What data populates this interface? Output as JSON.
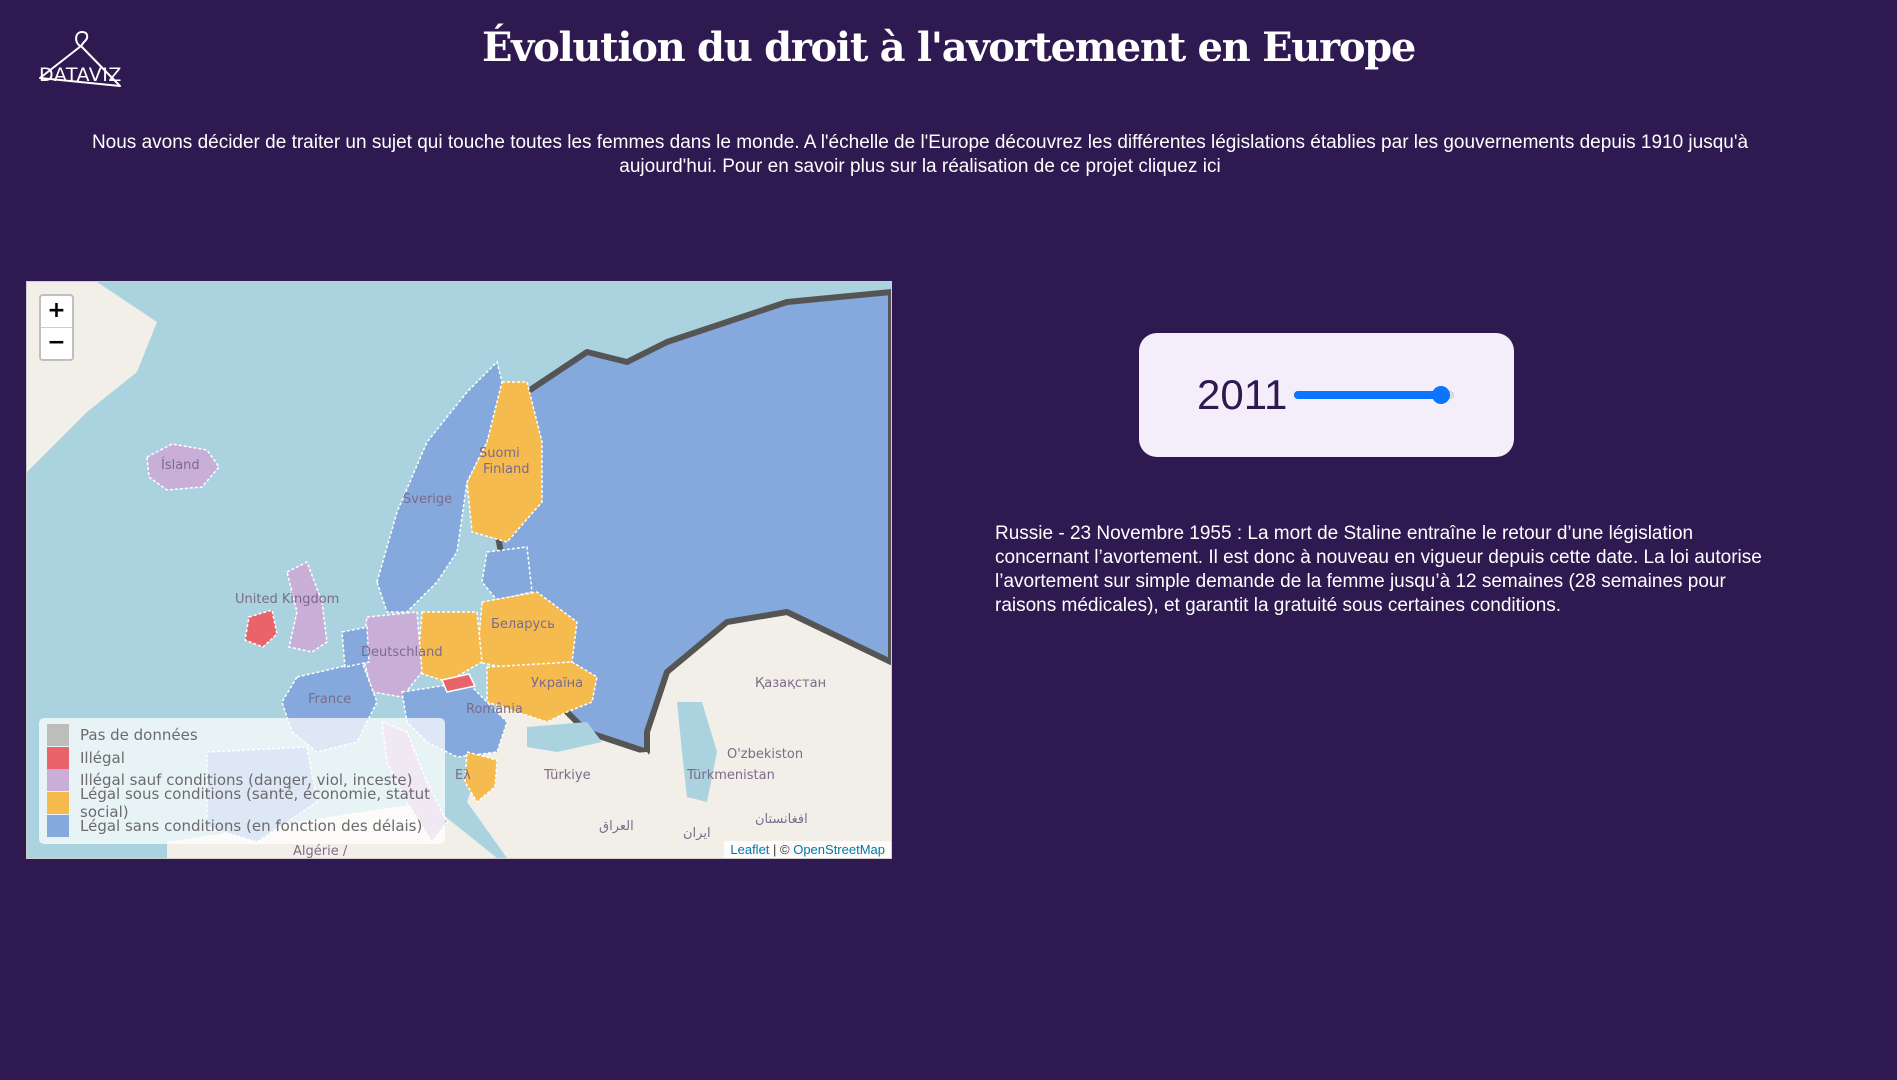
{
  "header": {
    "logo_text": "DATAVIZ",
    "title": "Évolution du droit à l'avortement en Europe",
    "intro": "Nous avons décider de traiter un sujet qui touche toutes les femmes dans le monde. A l'échelle de l'Europe découvrez les différentes législations établies par les gouvernements depuis 1910 jusqu'à aujourd'hui. Pour en savoir plus sur la réalisation de ce projet cliquez ici"
  },
  "map": {
    "zoom_in_label": "+",
    "zoom_out_label": "−",
    "labels": {
      "island": "Ísland",
      "suomi": "Suomi",
      "finland": "Finland",
      "sverige": "Sverige",
      "uk": "United Kingdom",
      "belarus": "Беларусь",
      "deutschland": "Deutschland",
      "ukraina": "Україна",
      "france": "France",
      "romania": "România",
      "kazakhstan": "Қазақстан",
      "ozbekiston": "O'zbekiston",
      "turkiye": "Türkiye",
      "turkmenistan": "Türkmenistan",
      "iraq": "العراق",
      "afghanistan": "افغانستان",
      "iran": "ایران",
      "algerie": "Algérie /",
      "greece": "Ελ"
    },
    "legend": [
      {
        "label": "Pas de données",
        "color": "#bdbdbd"
      },
      {
        "label": "Illégal",
        "color": "#e8636a"
      },
      {
        "label": "Illégal sauf conditions (danger, viol, inceste)",
        "color": "#c9afd8"
      },
      {
        "label": "Légal sous conditions (santé, économie, statut social)",
        "color": "#f6bb4f"
      },
      {
        "label": "Légal sans conditions (en fonction des délais)",
        "color": "#85a9dc"
      }
    ],
    "attribution": {
      "leaflet": "Leaflet",
      "separator": " | © ",
      "osm": "OpenStreetMap"
    }
  },
  "year_slider": {
    "year": "2011",
    "min_year": 1910,
    "max_year": 2020,
    "accent": "#0b75ff"
  },
  "event": {
    "text": "Russie - 23 Novembre 1955 : La mort de Staline entraîne le retour d’une législation concernant l’avortement. Il est donc à nouveau en vigueur depuis cette date. La loi autorise l’avortement sur simple demande de la femme jusqu’à 12 semaines (28 semaines pour raisons médicales), et garantit la gratuité sous certaines conditions."
  },
  "colors": {
    "background": "#2e1a50",
    "sea": "#abd3df",
    "land": "#f2efe9"
  }
}
